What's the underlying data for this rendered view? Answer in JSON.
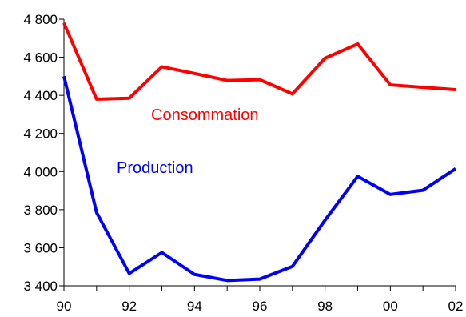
{
  "chart_data": {
    "type": "line",
    "title": "",
    "xlabel": "",
    "ylabel": "",
    "x": [
      90,
      91,
      92,
      93,
      94,
      95,
      96,
      97,
      98,
      99,
      100,
      101,
      102
    ],
    "x_tick_labels": [
      "90",
      "92",
      "94",
      "96",
      "98",
      "00",
      "02"
    ],
    "y_tick_labels": [
      "3 400",
      "3 600",
      "3 800",
      "4 000",
      "4 200",
      "4 400",
      "4 600",
      "4 800"
    ],
    "xlim": [
      90,
      102
    ],
    "ylim": [
      3400,
      4800
    ],
    "grid": false,
    "legend": "none",
    "series": [
      {
        "name": "Consommation",
        "color": "#ff0000",
        "values": [
          4780,
          4380,
          4385,
          4550,
          4515,
          4478,
          4482,
          4408,
          4595,
          4670,
          4455,
          4442,
          4430
        ]
      },
      {
        "name": "Production",
        "color": "#0000ff",
        "values": [
          4500,
          3785,
          3465,
          3575,
          3460,
          3428,
          3435,
          3502,
          3745,
          3975,
          3880,
          3902,
          4015
        ]
      }
    ]
  }
}
